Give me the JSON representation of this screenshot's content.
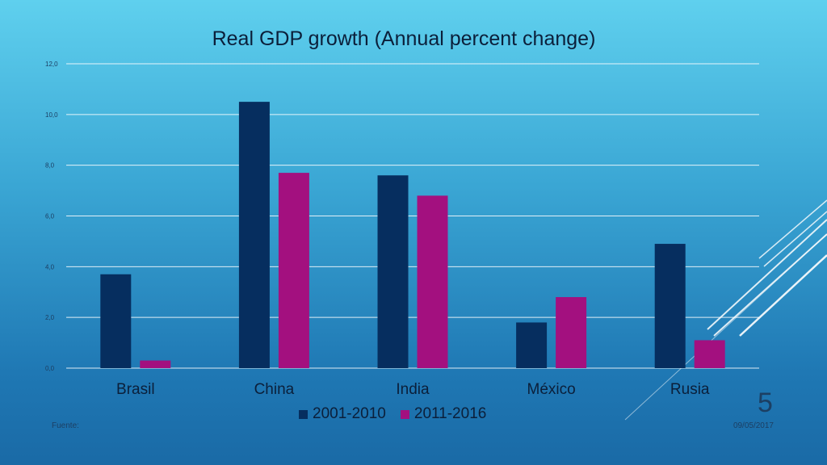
{
  "slide": {
    "footer_left": "Fuente:",
    "footer_date": "09/05/2017",
    "number": "5"
  },
  "colors": {
    "series1": "#062e5f",
    "series2": "#a3107f",
    "grid": "#ffffff",
    "text": "#0b1f3a"
  },
  "chart_data": {
    "type": "bar",
    "title": "Real GDP growth (Annual percent change)",
    "xlabel": "",
    "ylabel": "",
    "categories": [
      "Brasil",
      "China",
      "India",
      "México",
      "Rusia"
    ],
    "series": [
      {
        "name": "2001-2010",
        "values": [
          3.7,
          10.5,
          7.6,
          1.8,
          4.9
        ]
      },
      {
        "name": "2011-2016",
        "values": [
          0.3,
          7.7,
          6.8,
          2.8,
          1.1
        ]
      }
    ],
    "ylim": [
      0,
      12
    ],
    "yticks": [
      "0,0",
      "2,0",
      "4,0",
      "6,0",
      "8,0",
      "10,0",
      "12,0"
    ],
    "grid": true,
    "legend": "bottom"
  }
}
